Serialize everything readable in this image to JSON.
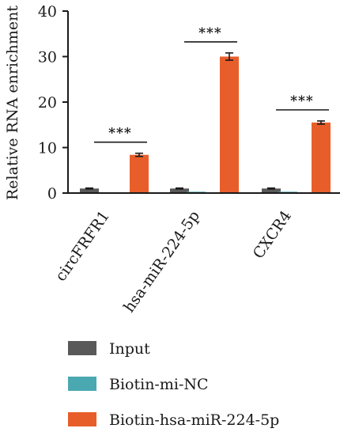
{
  "chart_data": {
    "type": "bar",
    "ylabel": "Relative RNA enrichment",
    "ylim": [
      0,
      40
    ],
    "yticks": [
      0,
      10,
      20,
      30,
      40
    ],
    "categories": [
      "circFRFR1",
      "hsa-miR-224-5p",
      "CXCR4"
    ],
    "series": [
      {
        "name": "Input",
        "color": "#595959",
        "values": [
          1.0,
          1.0,
          1.0
        ],
        "errors": [
          0.1,
          0.1,
          0.1
        ]
      },
      {
        "name": "Biotin-mi-NC",
        "color": "#4aa8b0",
        "values": [
          0.1,
          0.3,
          0.3
        ],
        "errors": [
          0.02,
          0.02,
          0.02
        ]
      },
      {
        "name": "Biotin-hsa-miR-224-5p",
        "color": "#e85e2a",
        "values": [
          8.4,
          30.0,
          15.5
        ],
        "errors": [
          0.35,
          0.8,
          0.35
        ]
      }
    ],
    "significance": [
      "***",
      "***",
      "***"
    ],
    "grid": false,
    "legend_position": "bottom"
  }
}
